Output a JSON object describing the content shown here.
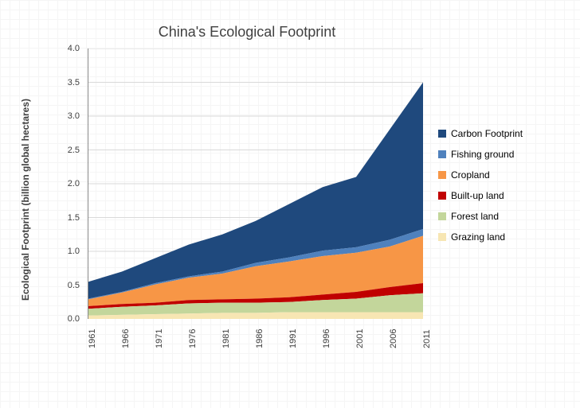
{
  "chart": {
    "type": "area_stacked",
    "title": "China's Ecological Footprint",
    "title_fontsize": 18,
    "ylabel": "Ecological Footprint (billion global hectares)",
    "label_fontsize": 12,
    "xlim": [
      1961,
      2011
    ],
    "xtick_step": 5,
    "xticks": [
      "1961",
      "1966",
      "1971",
      "1976",
      "1981",
      "1986",
      "1991",
      "1996",
      "2001",
      "2006",
      "2011"
    ],
    "ylim": [
      0,
      4.0
    ],
    "ytick_step": 0.5,
    "yticks": [
      "0.0",
      "0.5",
      "1.0",
      "1.5",
      "2.0",
      "2.5",
      "3.0",
      "3.5",
      "4.0"
    ],
    "background_color": "#ffffff",
    "grid_color": "#d9d9d9",
    "axis_color": "#888888",
    "years": [
      1961,
      1966,
      1971,
      1976,
      1981,
      1986,
      1991,
      1996,
      2001,
      2006,
      2011
    ],
    "series": [
      {
        "name": "Grazing land",
        "color": "#f7e6b3",
        "values": [
          0.05,
          0.06,
          0.07,
          0.08,
          0.09,
          0.09,
          0.1,
          0.1,
          0.1,
          0.1,
          0.1
        ]
      },
      {
        "name": "Forest land",
        "color": "#c3d69b",
        "values": [
          0.1,
          0.12,
          0.13,
          0.15,
          0.15,
          0.15,
          0.15,
          0.18,
          0.2,
          0.25,
          0.28
        ]
      },
      {
        "name": "Built-up land",
        "color": "#c00000",
        "values": [
          0.04,
          0.04,
          0.04,
          0.05,
          0.05,
          0.06,
          0.07,
          0.08,
          0.1,
          0.12,
          0.15
        ]
      },
      {
        "name": "Cropland",
        "color": "#f79646",
        "values": [
          0.1,
          0.17,
          0.27,
          0.33,
          0.38,
          0.48,
          0.53,
          0.57,
          0.58,
          0.6,
          0.7
        ]
      },
      {
        "name": "Fishing ground",
        "color": "#4f81bd",
        "values": [
          0.01,
          0.01,
          0.02,
          0.02,
          0.03,
          0.05,
          0.06,
          0.08,
          0.08,
          0.1,
          0.1
        ]
      },
      {
        "name": "Carbon Footprint",
        "color": "#1f497d",
        "values": [
          0.25,
          0.3,
          0.37,
          0.47,
          0.55,
          0.62,
          0.79,
          0.94,
          1.04,
          1.63,
          2.17
        ]
      }
    ],
    "legend_order": [
      "Carbon Footprint",
      "Fishing ground",
      "Cropland",
      "Built-up land",
      "Forest land",
      "Grazing land"
    ]
  }
}
